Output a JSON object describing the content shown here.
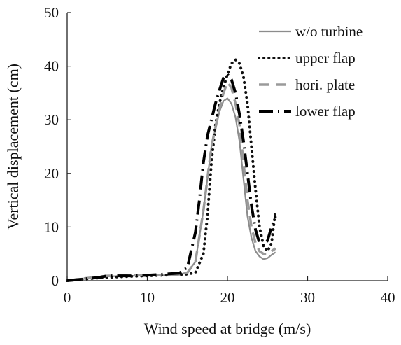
{
  "chart_data": {
    "type": "line",
    "title": "",
    "xlabel": "Wind speed at bridge (m/s)",
    "ylabel": "Vertical displacement (cm)",
    "xlim": [
      0,
      40
    ],
    "ylim": [
      0,
      50
    ],
    "xticks": [
      0,
      10,
      20,
      30,
      40
    ],
    "yticks": [
      0,
      10,
      20,
      30,
      40,
      50
    ],
    "grid": false,
    "legend_position": "top-right",
    "series": [
      {
        "name": "w/o turbine",
        "color": "#8c8c8c",
        "dash": "solid",
        "points": [
          [
            0,
            0
          ],
          [
            2,
            0.3
          ],
          [
            5,
            0.8
          ],
          [
            8,
            0.9
          ],
          [
            12,
            1.0
          ],
          [
            14,
            1.1
          ],
          [
            15,
            1.6
          ],
          [
            16,
            3.5
          ],
          [
            17,
            13
          ],
          [
            18,
            25
          ],
          [
            19,
            31.5
          ],
          [
            19.5,
            33.5
          ],
          [
            20,
            34
          ],
          [
            20.5,
            33
          ],
          [
            21,
            30.5
          ],
          [
            21.5,
            26
          ],
          [
            22,
            19
          ],
          [
            22.5,
            12
          ],
          [
            23,
            8
          ],
          [
            23.5,
            5.5
          ],
          [
            24,
            4.5
          ],
          [
            24.5,
            4
          ],
          [
            25,
            4.2
          ],
          [
            25.5,
            4.8
          ],
          [
            26,
            5.3
          ]
        ]
      },
      {
        "name": "upper flap",
        "color": "#111111",
        "dash": "dotted",
        "points": [
          [
            0,
            0
          ],
          [
            2,
            0.3
          ],
          [
            5,
            0.6
          ],
          [
            8,
            0.8
          ],
          [
            12,
            1.0
          ],
          [
            14,
            1.1
          ],
          [
            15,
            1.2
          ],
          [
            16,
            1.5
          ],
          [
            17,
            5
          ],
          [
            17.5,
            12
          ],
          [
            18,
            22
          ],
          [
            18.5,
            29
          ],
          [
            19,
            33
          ],
          [
            19.5,
            36
          ],
          [
            20,
            38.5
          ],
          [
            20.5,
            40.5
          ],
          [
            21,
            41.2
          ],
          [
            21.5,
            40.5
          ],
          [
            22,
            38
          ],
          [
            22.5,
            33
          ],
          [
            23,
            25
          ],
          [
            23.5,
            17
          ],
          [
            24,
            10
          ],
          [
            24.5,
            6.5
          ],
          [
            25,
            5.5
          ],
          [
            25.5,
            7
          ],
          [
            26,
            13
          ]
        ]
      },
      {
        "name": "hori. plate",
        "color": "#9a9a9a",
        "dash": "dashed",
        "points": [
          [
            0,
            0
          ],
          [
            2,
            0.4
          ],
          [
            5,
            0.9
          ],
          [
            8,
            1.0
          ],
          [
            12,
            1.0
          ],
          [
            14,
            1.1
          ],
          [
            15,
            1.5
          ],
          [
            16,
            3.5
          ],
          [
            17,
            13
          ],
          [
            18,
            25
          ],
          [
            19,
            32
          ],
          [
            19.5,
            35
          ],
          [
            20,
            37
          ],
          [
            20.5,
            36
          ],
          [
            21,
            33
          ],
          [
            21.5,
            29
          ],
          [
            22,
            22
          ],
          [
            22.5,
            15
          ],
          [
            23,
            10
          ],
          [
            23.5,
            7
          ],
          [
            24,
            5.5
          ],
          [
            24.5,
            5
          ],
          [
            25,
            5
          ],
          [
            25.5,
            5.5
          ],
          [
            26,
            6
          ]
        ]
      },
      {
        "name": "lower flap",
        "color": "#000000",
        "dash": "dashdot",
        "points": [
          [
            0,
            0
          ],
          [
            2,
            0.3
          ],
          [
            4,
            0.6
          ],
          [
            5,
            0.9
          ],
          [
            6,
            0.9
          ],
          [
            8,
            0.9
          ],
          [
            10,
            1.0
          ],
          [
            12,
            1.2
          ],
          [
            14,
            1.4
          ],
          [
            15,
            2.5
          ],
          [
            16,
            9
          ],
          [
            16.5,
            15
          ],
          [
            17,
            22
          ],
          [
            17.5,
            27
          ],
          [
            18,
            30
          ],
          [
            18.5,
            33
          ],
          [
            19,
            35.5
          ],
          [
            19.5,
            37.8
          ],
          [
            20,
            38.5
          ],
          [
            20.5,
            37.5
          ],
          [
            21,
            35
          ],
          [
            21.5,
            31
          ],
          [
            22,
            26
          ],
          [
            22.5,
            20
          ],
          [
            23,
            14
          ],
          [
            23.5,
            9.5
          ],
          [
            24,
            7
          ],
          [
            24.5,
            6.5
          ],
          [
            25,
            7.5
          ],
          [
            25.5,
            10
          ],
          [
            26,
            12
          ]
        ]
      }
    ]
  }
}
